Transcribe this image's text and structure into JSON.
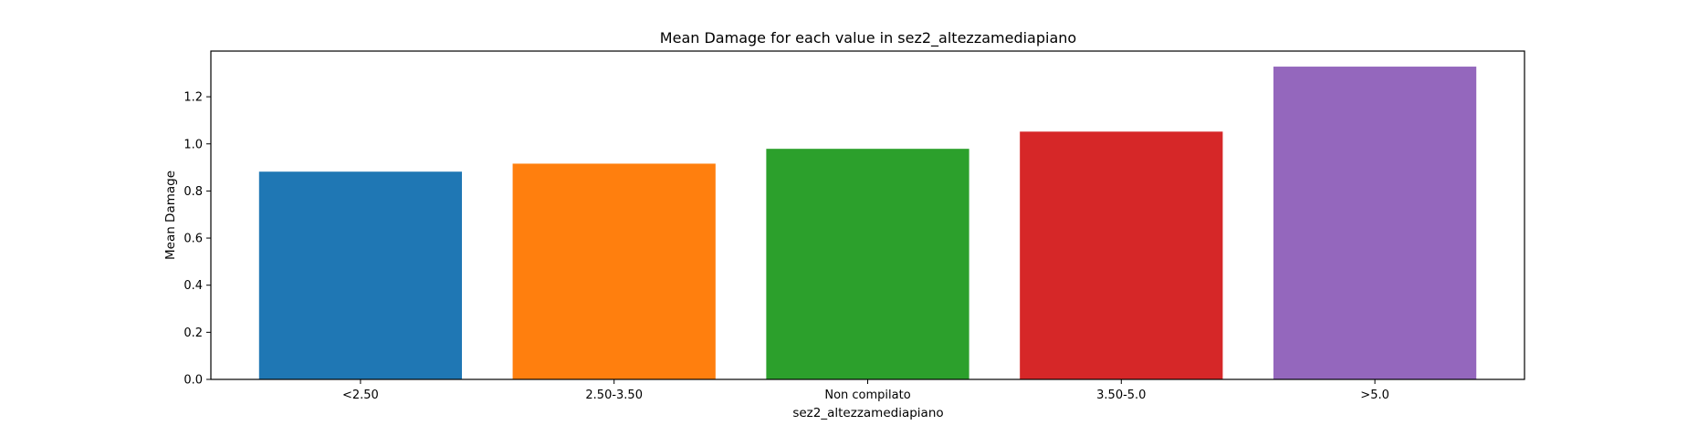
{
  "chart_data": {
    "type": "bar",
    "title": "Mean Damage for each value in sez2_altezzamediapiano",
    "xlabel": "sez2_altezzamediapiano",
    "ylabel": "Mean Damage",
    "categories": [
      "<2.50",
      "2.50-3.50",
      "Non compilato",
      "3.50-5.0",
      ">5.0"
    ],
    "values": [
      0.882,
      0.916,
      0.979,
      1.052,
      1.328
    ],
    "colors": [
      "#1f77b4",
      "#ff7f0e",
      "#2ca02c",
      "#d62728",
      "#9467bd"
    ],
    "ylim": [
      0,
      1.394
    ],
    "yticks": [
      "0.0",
      "0.2",
      "0.4",
      "0.6",
      "0.8",
      "1.0",
      "1.2"
    ],
    "grid": false,
    "legend": "none"
  }
}
